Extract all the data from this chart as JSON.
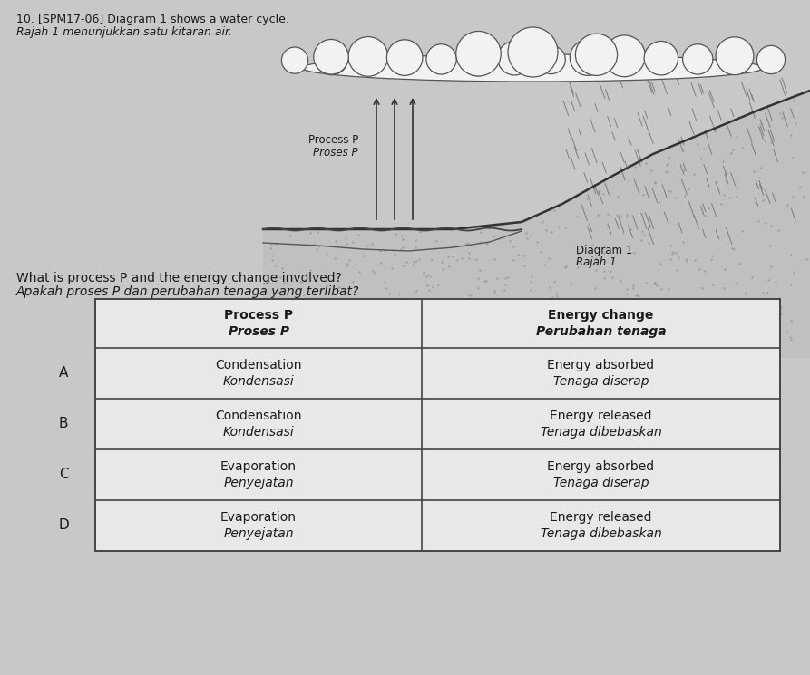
{
  "bg_color": "#c8c8c8",
  "title_line1": "10. [SPM17-06] Diagram 1 shows a water cycle.",
  "title_line2": "Rajah 1 menunjukkan satu kitaran air.",
  "diagram_label1": "Diagram 1",
  "diagram_label2": "Rajah 1",
  "process_label1": "Process P",
  "process_label2": "Proses P",
  "question_line1": "What is process P and the energy change involved?",
  "question_line2": "Apakah proses P dan perubahan tenaga yang terlibat?",
  "table_rows": [
    [
      "A",
      "Condensation",
      "Kondensasi",
      "Energy absorbed",
      "Tenaga diserap"
    ],
    [
      "B",
      "Condensation",
      "Kondensasi",
      "Energy released",
      "Tenaga dibebaskan"
    ],
    [
      "C",
      "Evaporation",
      "Penyejatan",
      "Energy absorbed",
      "Tenaga diserap"
    ],
    [
      "D",
      "Evaporation",
      "Penyejatan",
      "Energy released",
      "Tenaga dibebaskan"
    ]
  ],
  "font_color": "#1a1a1a",
  "table_line_color": "#444444"
}
